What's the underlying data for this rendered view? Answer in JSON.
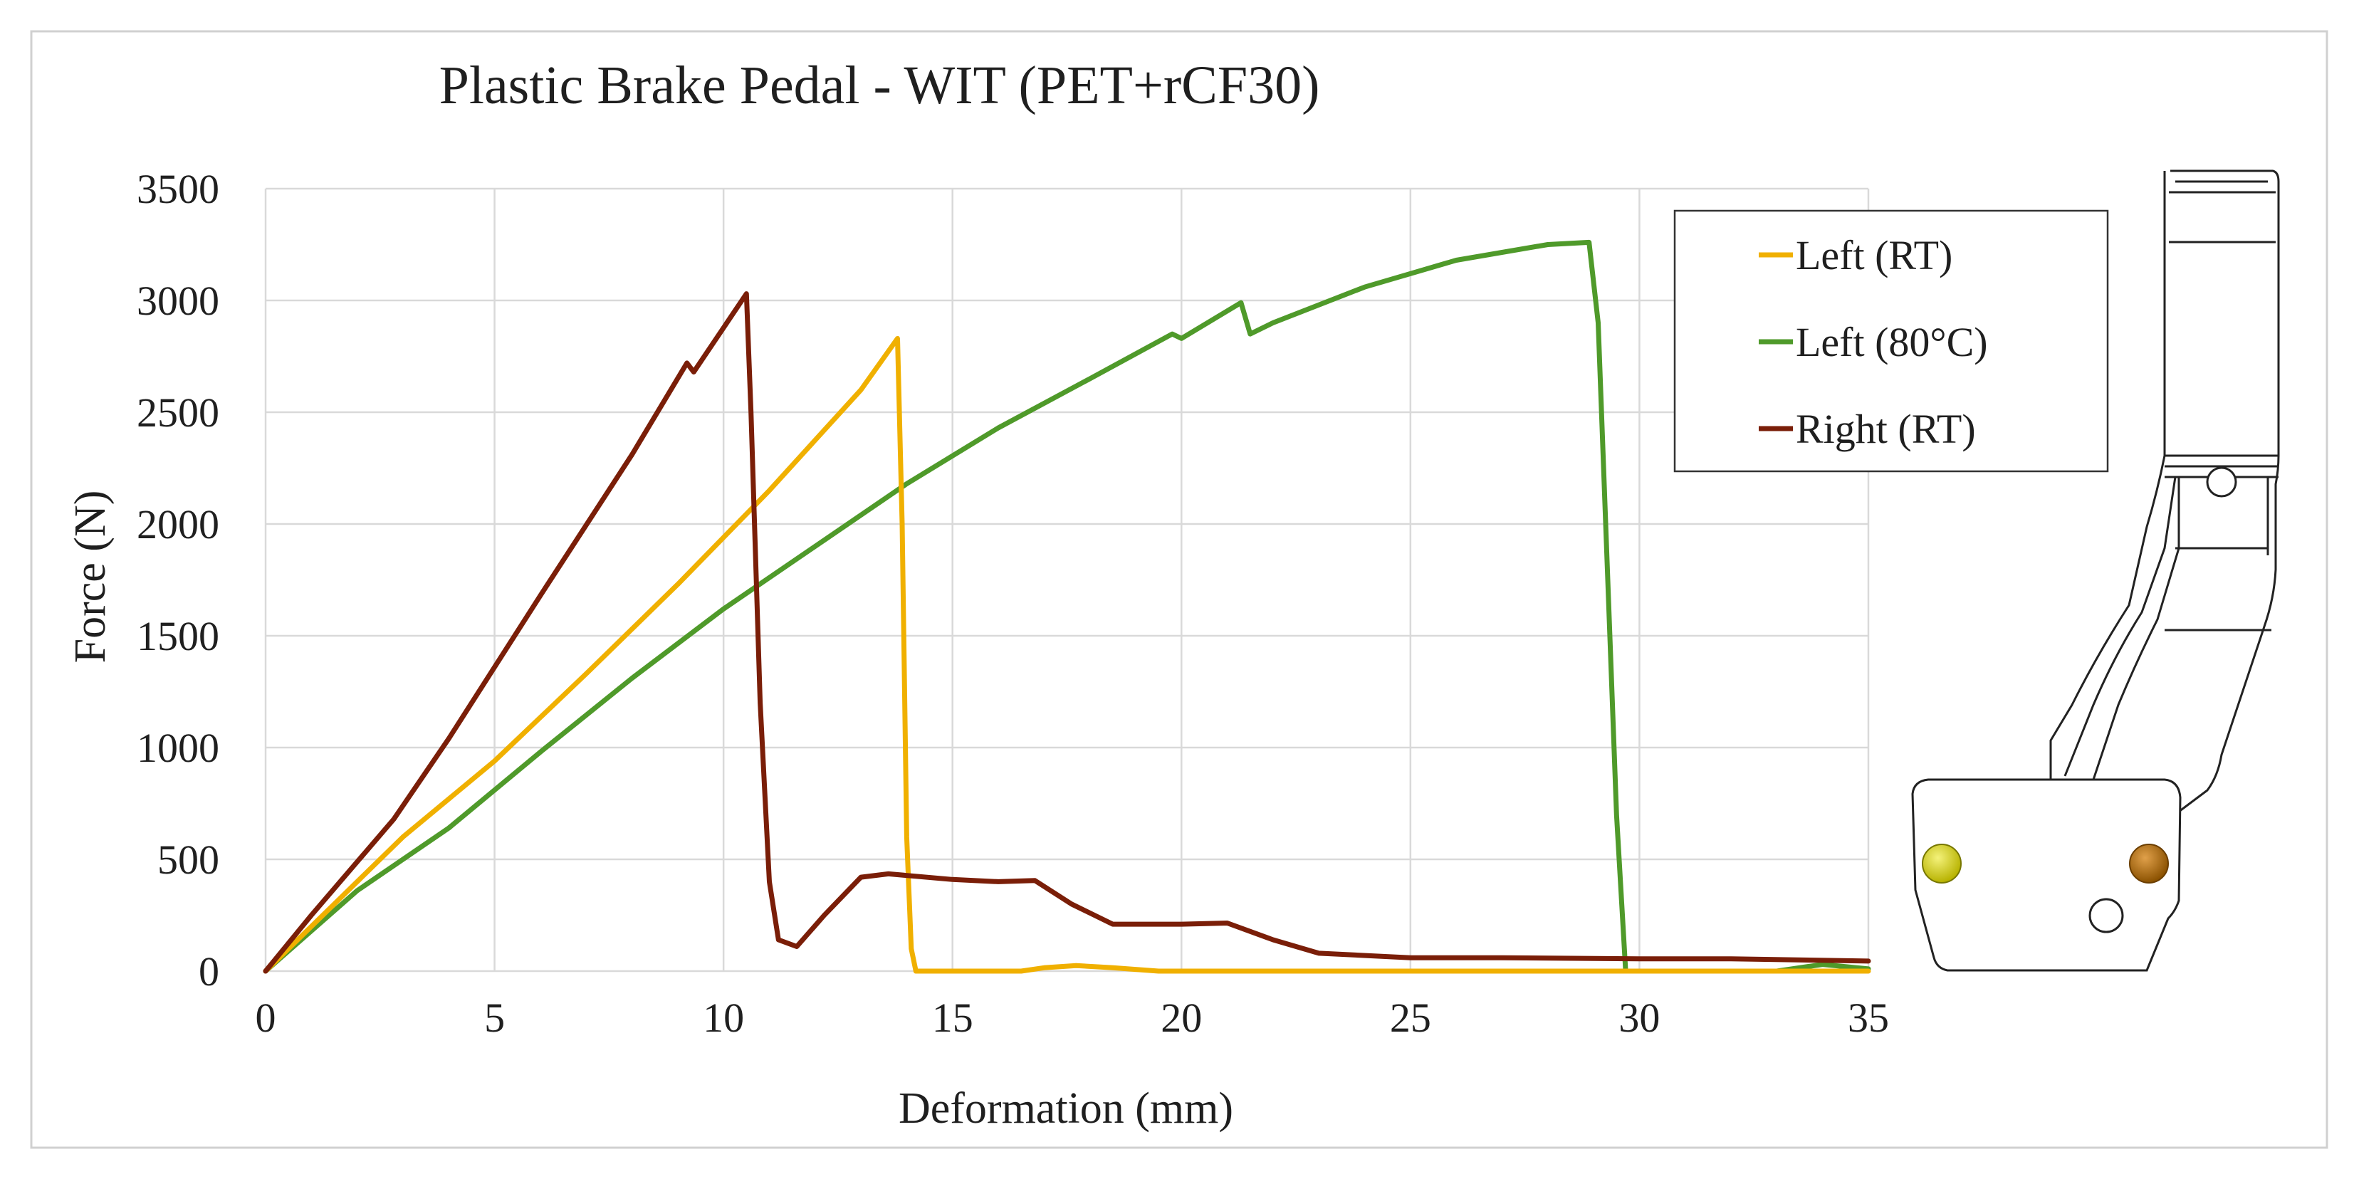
{
  "chart_data": {
    "type": "line",
    "title": "Plastic Brake Pedal - WIT (PET+rCF30)",
    "xlabel": "Deformation (mm)",
    "ylabel": "Force (N)",
    "xlim": [
      0,
      35
    ],
    "ylim": [
      0,
      3500
    ],
    "xticks": [
      0,
      5,
      10,
      15,
      20,
      25,
      30,
      35
    ],
    "yticks": [
      0,
      500,
      1000,
      1500,
      2000,
      2500,
      3000,
      3500
    ],
    "grid": true,
    "legend_position": "top-right",
    "series": [
      {
        "name": "Left (RT)",
        "color": "#f0b000",
        "points": [
          [
            0,
            0
          ],
          [
            1,
            200
          ],
          [
            3,
            600
          ],
          [
            5,
            940
          ],
          [
            7,
            1330
          ],
          [
            9,
            1730
          ],
          [
            11,
            2150
          ],
          [
            13,
            2600
          ],
          [
            13.8,
            2830
          ],
          [
            13.9,
            2000
          ],
          [
            14,
            600
          ],
          [
            14.1,
            100
          ],
          [
            14.2,
            0
          ],
          [
            16.5,
            0
          ],
          [
            17,
            15
          ],
          [
            17.7,
            25
          ],
          [
            18.5,
            15
          ],
          [
            19.5,
            0
          ],
          [
            35,
            0
          ]
        ]
      },
      {
        "name": "Left (80°C)",
        "color": "#4f9a2a",
        "points": [
          [
            0,
            0
          ],
          [
            2,
            360
          ],
          [
            4,
            640
          ],
          [
            6,
            980
          ],
          [
            8,
            1310
          ],
          [
            10,
            1620
          ],
          [
            12,
            1900
          ],
          [
            14,
            2180
          ],
          [
            16,
            2430
          ],
          [
            18,
            2650
          ],
          [
            19.8,
            2850
          ],
          [
            20,
            2830
          ],
          [
            21.3,
            2990
          ],
          [
            21.5,
            2850
          ],
          [
            22,
            2900
          ],
          [
            24,
            3060
          ],
          [
            26,
            3180
          ],
          [
            28,
            3250
          ],
          [
            28.9,
            3260
          ],
          [
            29.1,
            2900
          ],
          [
            29.3,
            1800
          ],
          [
            29.5,
            700
          ],
          [
            29.7,
            0
          ],
          [
            33,
            0
          ],
          [
            34,
            30
          ],
          [
            35,
            10
          ]
        ]
      },
      {
        "name": "Right (RT)",
        "color": "#7a1e08",
        "points": [
          [
            0,
            0
          ],
          [
            1,
            250
          ],
          [
            2.8,
            680
          ],
          [
            4,
            1040
          ],
          [
            6,
            1680
          ],
          [
            8,
            2310
          ],
          [
            9.2,
            2720
          ],
          [
            9.35,
            2680
          ],
          [
            10.5,
            3030
          ],
          [
            10.6,
            2500
          ],
          [
            10.8,
            1200
          ],
          [
            11,
            400
          ],
          [
            11.2,
            140
          ],
          [
            11.6,
            110
          ],
          [
            12.2,
            250
          ],
          [
            13,
            420
          ],
          [
            13.6,
            435
          ],
          [
            15,
            410
          ],
          [
            16,
            400
          ],
          [
            16.8,
            405
          ],
          [
            17.6,
            300
          ],
          [
            18.5,
            210
          ],
          [
            20,
            210
          ],
          [
            21,
            215
          ],
          [
            22,
            140
          ],
          [
            23,
            80
          ],
          [
            25,
            60
          ],
          [
            27,
            60
          ],
          [
            30,
            55
          ],
          [
            32,
            55
          ],
          [
            35,
            45
          ]
        ]
      }
    ]
  },
  "figure": {
    "inset_description_label": "brake-pedal-drawing"
  }
}
